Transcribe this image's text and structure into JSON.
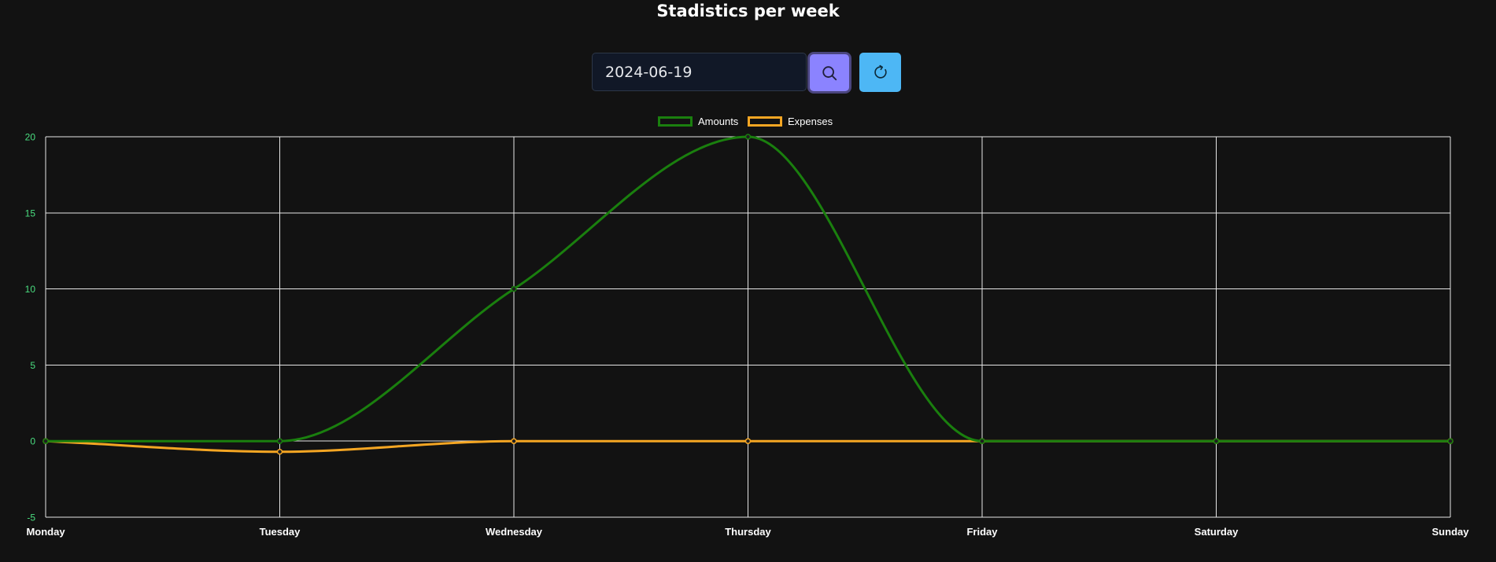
{
  "header": {
    "title": "Stadistics per week"
  },
  "search": {
    "date_value": "2024-06-19"
  },
  "icons": {
    "search": "search-icon",
    "refresh": "refresh-icon"
  },
  "colors": {
    "background": "#121212",
    "amounts": "#1a7f0e",
    "expenses": "#f5a623",
    "search_button": "#8b83ff",
    "refresh_button": "#4db7f5",
    "y_tick_text": "#4ade80",
    "grid": "#e6e6e6"
  },
  "chart_data": {
    "type": "line",
    "title": "",
    "xlabel": "",
    "ylabel": "",
    "categories": [
      "Monday",
      "Tuesday",
      "Wednesday",
      "Thursday",
      "Friday",
      "Saturday",
      "Sunday"
    ],
    "series": [
      {
        "name": "Amounts",
        "color": "#1a7f0e",
        "values": [
          0,
          0,
          10,
          20,
          0,
          0,
          0
        ]
      },
      {
        "name": "Expenses",
        "color": "#f5a623",
        "values": [
          0,
          -0.7,
          0,
          0,
          0,
          0,
          0
        ]
      }
    ],
    "ylim": [
      -5,
      20
    ],
    "yticks": [
      "-5",
      "0",
      "5",
      "10",
      "15",
      "20"
    ],
    "grid": true,
    "legend_position": "top-center",
    "smooth": true
  }
}
